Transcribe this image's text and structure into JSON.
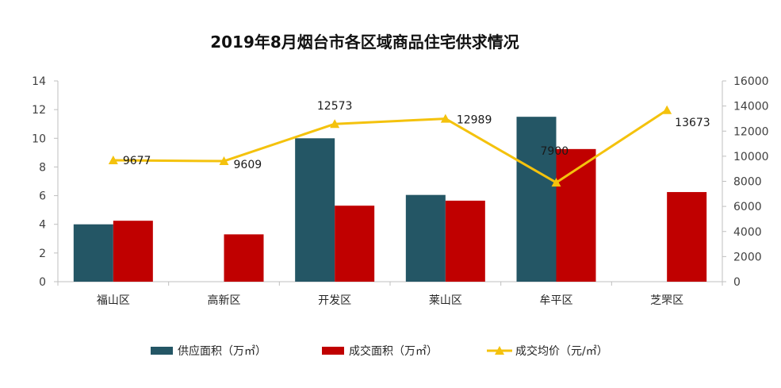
{
  "chart_data": {
    "type": "bar",
    "title": "2019年8月烟台市各区域商品住宅供求情况",
    "categories": [
      "福山区",
      "高新区",
      "开发区",
      "莱山区",
      "牟平区",
      "芝罘区"
    ],
    "series": [
      {
        "name": "供应面积（万㎡）",
        "kind": "bar",
        "axis": "left",
        "color": "#245665",
        "values": [
          4.0,
          0,
          10.0,
          6.05,
          11.5,
          0
        ]
      },
      {
        "name": "成交面积（万㎡）",
        "kind": "bar",
        "axis": "left",
        "color": "#C00000",
        "values": [
          4.25,
          3.3,
          5.3,
          5.65,
          9.25,
          6.25
        ]
      },
      {
        "name": "成交均价（元/㎡）",
        "kind": "line",
        "axis": "right",
        "color": "#F4C20D",
        "values": [
          9677,
          9609,
          12573,
          12989,
          7900,
          13673
        ],
        "labels": [
          "9677",
          "9609",
          "12573",
          "12989",
          "7900",
          "13673"
        ]
      }
    ],
    "y_left": {
      "min": 0,
      "max": 14,
      "step": 2
    },
    "y_right": {
      "min": 0,
      "max": 16000,
      "step": 2000
    },
    "legend_position": "bottom",
    "grid": false
  }
}
